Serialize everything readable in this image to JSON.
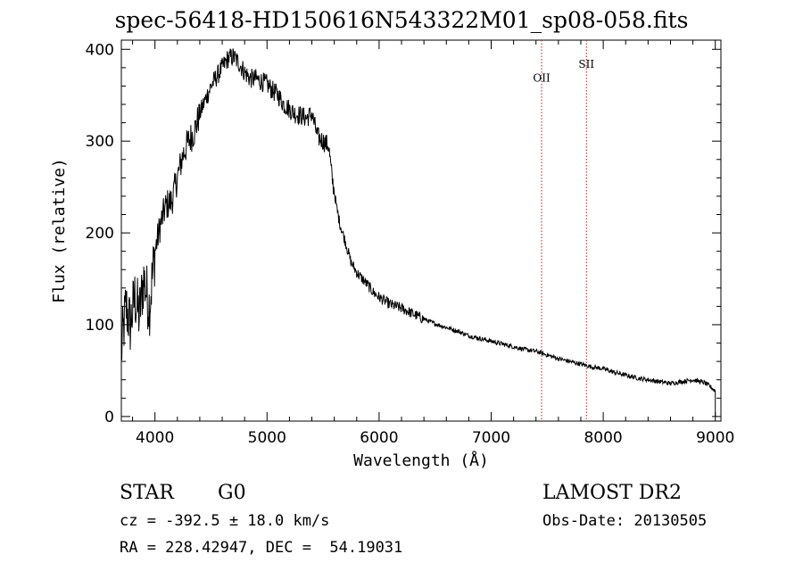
{
  "title": "spec-56418-HD150616N543322M01_sp08-058.fits",
  "info": {
    "class_label": "STAR",
    "subclass": "G0",
    "cz": "cz = -392.5 ± 18.0 km/s",
    "radec": "RA = 228.42947, DEC =  54.19031",
    "survey": "LAMOST DR2",
    "obs_date": "Obs-Date: 20130505"
  },
  "colors": {
    "spectrum": "#000000",
    "line_marker": "#b22222",
    "axes": "#000000"
  },
  "chart_data": {
    "type": "line",
    "title": "spec-56418-HD150616N543322M01_sp08-058.fits",
    "xlabel": "Wavelength (Å)",
    "ylabel": "Flux (relative)",
    "xlim": [
      3700,
      9050
    ],
    "ylim": [
      -5,
      410
    ],
    "xticks": [
      4000,
      5000,
      6000,
      7000,
      8000,
      9000
    ],
    "yticks": [
      0,
      100,
      200,
      300,
      400
    ],
    "grid": false,
    "series": [
      {
        "x": [
          3700,
          3740,
          3780,
          3820,
          3860,
          3900,
          3950,
          4000,
          4050,
          4100,
          4150,
          4200,
          4250,
          4300,
          4350,
          4400,
          4450,
          4500,
          4550,
          4600,
          4650,
          4700,
          4750,
          4800,
          4850,
          4900,
          4950,
          5000,
          5050,
          5100,
          5150,
          5200,
          5250,
          5300,
          5350,
          5400,
          5450,
          5500,
          5550,
          5580,
          5600,
          5620,
          5650,
          5700,
          5750,
          5800,
          5850,
          5900,
          5950,
          6000,
          6100,
          6200,
          6300,
          6400,
          6500,
          6600,
          6700,
          6800,
          6900,
          7000,
          7100,
          7200,
          7300,
          7400,
          7500,
          7600,
          7700,
          7800,
          7900,
          8000,
          8100,
          8200,
          8300,
          8400,
          8500,
          8600,
          8700,
          8800,
          8900,
          8950,
          9000
        ],
        "y": [
          70,
          120,
          100,
          130,
          110,
          150,
          120,
          180,
          210,
          230,
          235,
          260,
          285,
          300,
          310,
          330,
          345,
          360,
          370,
          380,
          390,
          392,
          385,
          375,
          368,
          368,
          365,
          362,
          355,
          350,
          340,
          335,
          330,
          328,
          325,
          330,
          305,
          300,
          295,
          260,
          245,
          228,
          210,
          190,
          168,
          157,
          150,
          143,
          135,
          130,
          122,
          118,
          112,
          106,
          101,
          97,
          93,
          88,
          85,
          82,
          79,
          76,
          73,
          71,
          67,
          63,
          60,
          57,
          54,
          52,
          48,
          45,
          42,
          40,
          38,
          36,
          38,
          40,
          37,
          33,
          28
        ]
      }
    ],
    "annotations": [
      {
        "label": "OII",
        "x": 7450,
        "y": 365
      },
      {
        "label": "SII",
        "x": 7850,
        "y": 380
      }
    ]
  }
}
